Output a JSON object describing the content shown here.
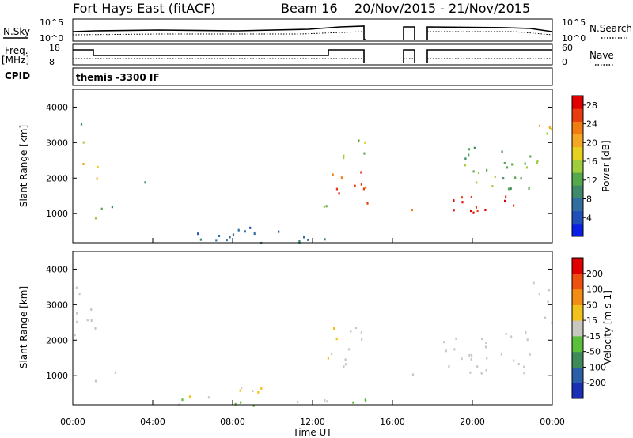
{
  "header": {
    "station": "Fort Hays East (fitACF)",
    "beam": "Beam 16",
    "date_range": "20/Nov/2015 - 21/Nov/2015"
  },
  "strips": {
    "nsky_label": "N.Sky",
    "nsearch_label": "N.Search",
    "noise_ticks": [
      "10^5",
      "10^0"
    ],
    "freq_label": "Freq.",
    "freq_unit": "[MHz]",
    "freq_ticks": [
      "18",
      "8"
    ],
    "nave_label": "Nave",
    "nave_ticks": [
      "60",
      "0"
    ],
    "cpid_label": "CPID",
    "cpid_value": "themis -3300 IF"
  },
  "chart_data": [
    {
      "type": "heatmap",
      "title": "",
      "ylabel": "Slant Range [km]",
      "xlabel": "Time UT",
      "xticks": [
        "00:00",
        "04:00",
        "08:00",
        "12:00",
        "16:00",
        "20:00",
        "00:00"
      ],
      "yticks": [
        "1000",
        "2000",
        "3000",
        "4000"
      ],
      "xlim_hours": [
        0,
        24
      ],
      "ylim_km": [
        180,
        4500
      ],
      "colorbar": {
        "label": "Power [dB]",
        "ticks": [
          "4",
          "8",
          "12",
          "16",
          "20",
          "24",
          "28"
        ],
        "range": [
          0,
          30
        ],
        "colors": [
          "#0a1ee6",
          "#1f4fb8",
          "#2f6e9e",
          "#3f8a6a",
          "#55a84b",
          "#9fcd3c",
          "#e6d21e",
          "#f5a623",
          "#f07c12",
          "#e83c10",
          "#e00000"
        ]
      },
      "regions": [
        {
          "t": [
            0.0,
            0.6
          ],
          "r": [
            3400,
            3900
          ],
          "level": 8
        },
        {
          "t": [
            0.0,
            0.5
          ],
          "r": [
            2700,
            3200
          ],
          "level": 14
        },
        {
          "t": [
            0.3,
            1.4
          ],
          "r": [
            1900,
            2500
          ],
          "level": 20
        },
        {
          "t": [
            0.8,
            2.1
          ],
          "r": [
            800,
            1300
          ],
          "level": 12
        },
        {
          "t": [
            3.3,
            4.3
          ],
          "r": [
            1800,
            2100
          ],
          "level": 8
        },
        {
          "t": [
            4.5,
            12.8
          ],
          "r": [
            180,
            450
          ],
          "level": 8
        },
        {
          "t": [
            6.2,
            10.5
          ],
          "r": [
            350,
            750
          ],
          "level": 6
        },
        {
          "t": [
            12.8,
            14.8
          ],
          "r": [
            1100,
            2200
          ],
          "level": 26
        },
        {
          "t": [
            13.5,
            14.8
          ],
          "r": [
            2400,
            3200
          ],
          "level": 14
        },
        {
          "t": [
            12.2,
            12.9
          ],
          "r": [
            900,
            1400
          ],
          "level": 12
        },
        {
          "t": [
            16.6,
            17.1
          ],
          "r": [
            1050,
            1700
          ],
          "level": 24
        },
        {
          "t": [
            18.5,
            22.9
          ],
          "r": [
            1050,
            1700
          ],
          "level": 27
        },
        {
          "t": [
            18.5,
            22.9
          ],
          "r": [
            1700,
            2900
          ],
          "level": 12
        },
        {
          "t": [
            23.0,
            24.0
          ],
          "r": [
            2300,
            3700
          ],
          "level": 18
        }
      ],
      "data_gaps_hours": [
        [
          14.8,
          16.6
        ],
        [
          17.1,
          17.9
        ],
        [
          18.0,
          18.4
        ]
      ]
    },
    {
      "type": "heatmap",
      "title": "",
      "ylabel": "Slant Range [km]",
      "xlabel": "Time UT",
      "xticks": [
        "00:00",
        "04:00",
        "08:00",
        "12:00",
        "16:00",
        "20:00",
        "00:00"
      ],
      "yticks": [
        "1000",
        "2000",
        "3000",
        "4000"
      ],
      "xlim_hours": [
        0,
        24
      ],
      "ylim_km": [
        180,
        4500
      ],
      "colorbar": {
        "label": "Velocity [m s-1]",
        "ticks": [
          "200",
          "100",
          "50",
          "15",
          "-15",
          "-50",
          "-100",
          "-200"
        ],
        "range": [
          -250,
          250
        ],
        "colors": [
          "#1a2fb5",
          "#2b5fa8",
          "#3f8a5a",
          "#5cbf3a",
          "#c8c8c0",
          "#f2c21c",
          "#f28c12",
          "#ee5010",
          "#e00000"
        ]
      },
      "regions": [
        {
          "t": [
            0.0,
            0.6
          ],
          "r": [
            3300,
            3900
          ],
          "level": 0
        },
        {
          "t": [
            0.0,
            1.4
          ],
          "r": [
            1900,
            3000
          ],
          "level": 0
        },
        {
          "t": [
            0.8,
            2.1
          ],
          "r": [
            800,
            1200
          ],
          "level": 0
        },
        {
          "t": [
            5.8,
            9.5
          ],
          "r": [
            400,
            800
          ],
          "level": 30
        },
        {
          "t": [
            4.0,
            14.8
          ],
          "r": [
            180,
            400
          ],
          "level": -40
        },
        {
          "t": [
            12.7,
            13.5
          ],
          "r": [
            1500,
            2500
          ],
          "level": 35
        },
        {
          "t": [
            13.5,
            14.8
          ],
          "r": [
            1100,
            2500
          ],
          "level": 0
        },
        {
          "t": [
            16.6,
            17.1
          ],
          "r": [
            1050,
            1700
          ],
          "level": 0
        },
        {
          "t": [
            18.5,
            23.0
          ],
          "r": [
            1000,
            2300
          ],
          "level": 0
        },
        {
          "t": [
            23.0,
            24.0
          ],
          "r": [
            2300,
            3700
          ],
          "level": 0
        }
      ],
      "data_gaps_hours": [
        [
          14.8,
          16.6
        ],
        [
          17.1,
          17.9
        ],
        [
          18.0,
          18.4
        ]
      ]
    }
  ]
}
